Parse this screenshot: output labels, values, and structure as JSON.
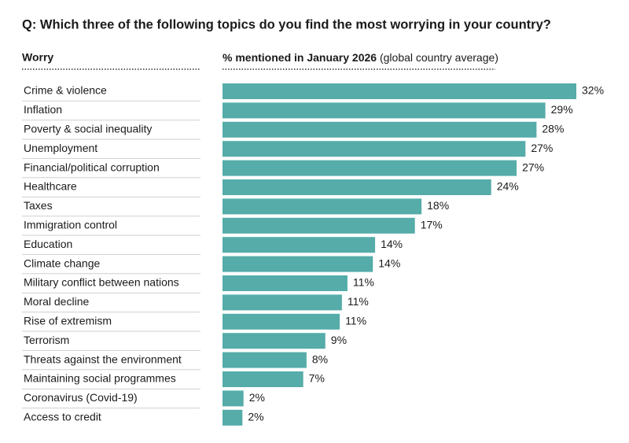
{
  "chart_data": {
    "type": "bar",
    "orientation": "horizontal",
    "title": "Q: Which three of the following topics do you find the most worrying in your country?",
    "category_header": "Worry",
    "value_header": "% mentioned in January 2026",
    "value_header_note": "(global country average)",
    "categories": [
      "Crime & violence",
      "Inflation",
      "Poverty & social inequality",
      "Unemployment",
      "Financial/political corruption",
      "Healthcare",
      "Taxes",
      "Immigration control",
      "Education",
      "Climate change",
      "Military conflict between nations",
      "Moral decline",
      "Rise of extremism",
      "Terrorism",
      "Threats against the environment",
      "Maintaining social programmes",
      "Coronavirus (Covid-19)",
      "Access to credit"
    ],
    "values": [
      32,
      29.2,
      28.4,
      27.4,
      26.6,
      24.3,
      18,
      17.4,
      13.8,
      13.6,
      11.3,
      10.8,
      10.6,
      9.3,
      7.6,
      7.3,
      1.9,
      1.8
    ],
    "value_labels": [
      "32%",
      "29%",
      "28%",
      "27%",
      "27%",
      "24%",
      "18%",
      "17%",
      "14%",
      "14%",
      "11%",
      "11%",
      "11%",
      "9%",
      "8%",
      "7%",
      "2%",
      "2%"
    ],
    "color": "#55aca8",
    "xlim": [
      0,
      32
    ]
  }
}
